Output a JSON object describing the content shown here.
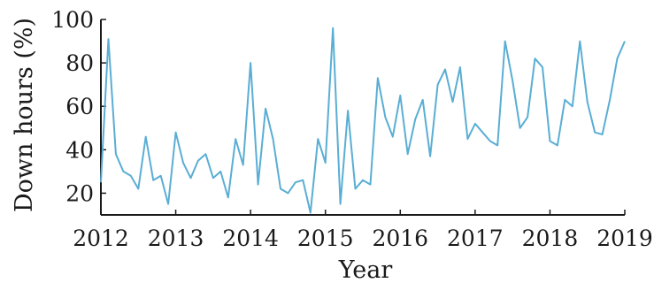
{
  "chart_data": {
    "type": "line",
    "xlabel": "Year",
    "ylabel": "Down hours (%)",
    "xlim": [
      2012,
      2019
    ],
    "ylim": [
      10,
      100
    ],
    "x_ticks": [
      2012,
      2013,
      2014,
      2015,
      2016,
      2017,
      2018,
      2019
    ],
    "y_ticks": [
      20,
      40,
      60,
      80,
      100
    ],
    "grid": false,
    "line_color": "#5aaed4",
    "series": [
      {
        "x": [
          2012.0,
          2012.1,
          2012.2,
          2012.3,
          2012.4,
          2012.5,
          2012.6,
          2012.7,
          2012.8,
          2012.9,
          2013.0,
          2013.1,
          2013.2,
          2013.3,
          2013.4,
          2013.5,
          2013.6,
          2013.7,
          2013.8,
          2013.9,
          2014.0,
          2014.1,
          2014.2,
          2014.3,
          2014.4,
          2014.5,
          2014.6,
          2014.7,
          2014.8,
          2014.9,
          2015.0,
          2015.1,
          2015.2,
          2015.3,
          2015.4,
          2015.5,
          2015.6,
          2015.7,
          2015.8,
          2015.9,
          2016.0,
          2016.1,
          2016.2,
          2016.3,
          2016.4,
          2016.5,
          2016.6,
          2016.7,
          2016.8,
          2016.9,
          2017.0,
          2017.1,
          2017.2,
          2017.3,
          2017.4,
          2017.5,
          2017.6,
          2017.7,
          2017.8,
          2017.9,
          2018.0,
          2018.1,
          2018.2,
          2018.3,
          2018.4,
          2018.5,
          2018.6,
          2018.7,
          2018.8,
          2018.9,
          2019.0
        ],
        "values": [
          25,
          91,
          38,
          30,
          28,
          22,
          46,
          26,
          28,
          15,
          48,
          34,
          27,
          35,
          38,
          27,
          30,
          18,
          45,
          33,
          80,
          24,
          59,
          45,
          22,
          20,
          25,
          26,
          11,
          45,
          34,
          96,
          15,
          58,
          22,
          26,
          24,
          73,
          55,
          46,
          65,
          38,
          54,
          63,
          37,
          70,
          77,
          62,
          78,
          45,
          52,
          48,
          44,
          42,
          90,
          72,
          50,
          55,
          82,
          78,
          44,
          42,
          63,
          60,
          90,
          62,
          48,
          47,
          63,
          82,
          90
        ]
      }
    ]
  }
}
